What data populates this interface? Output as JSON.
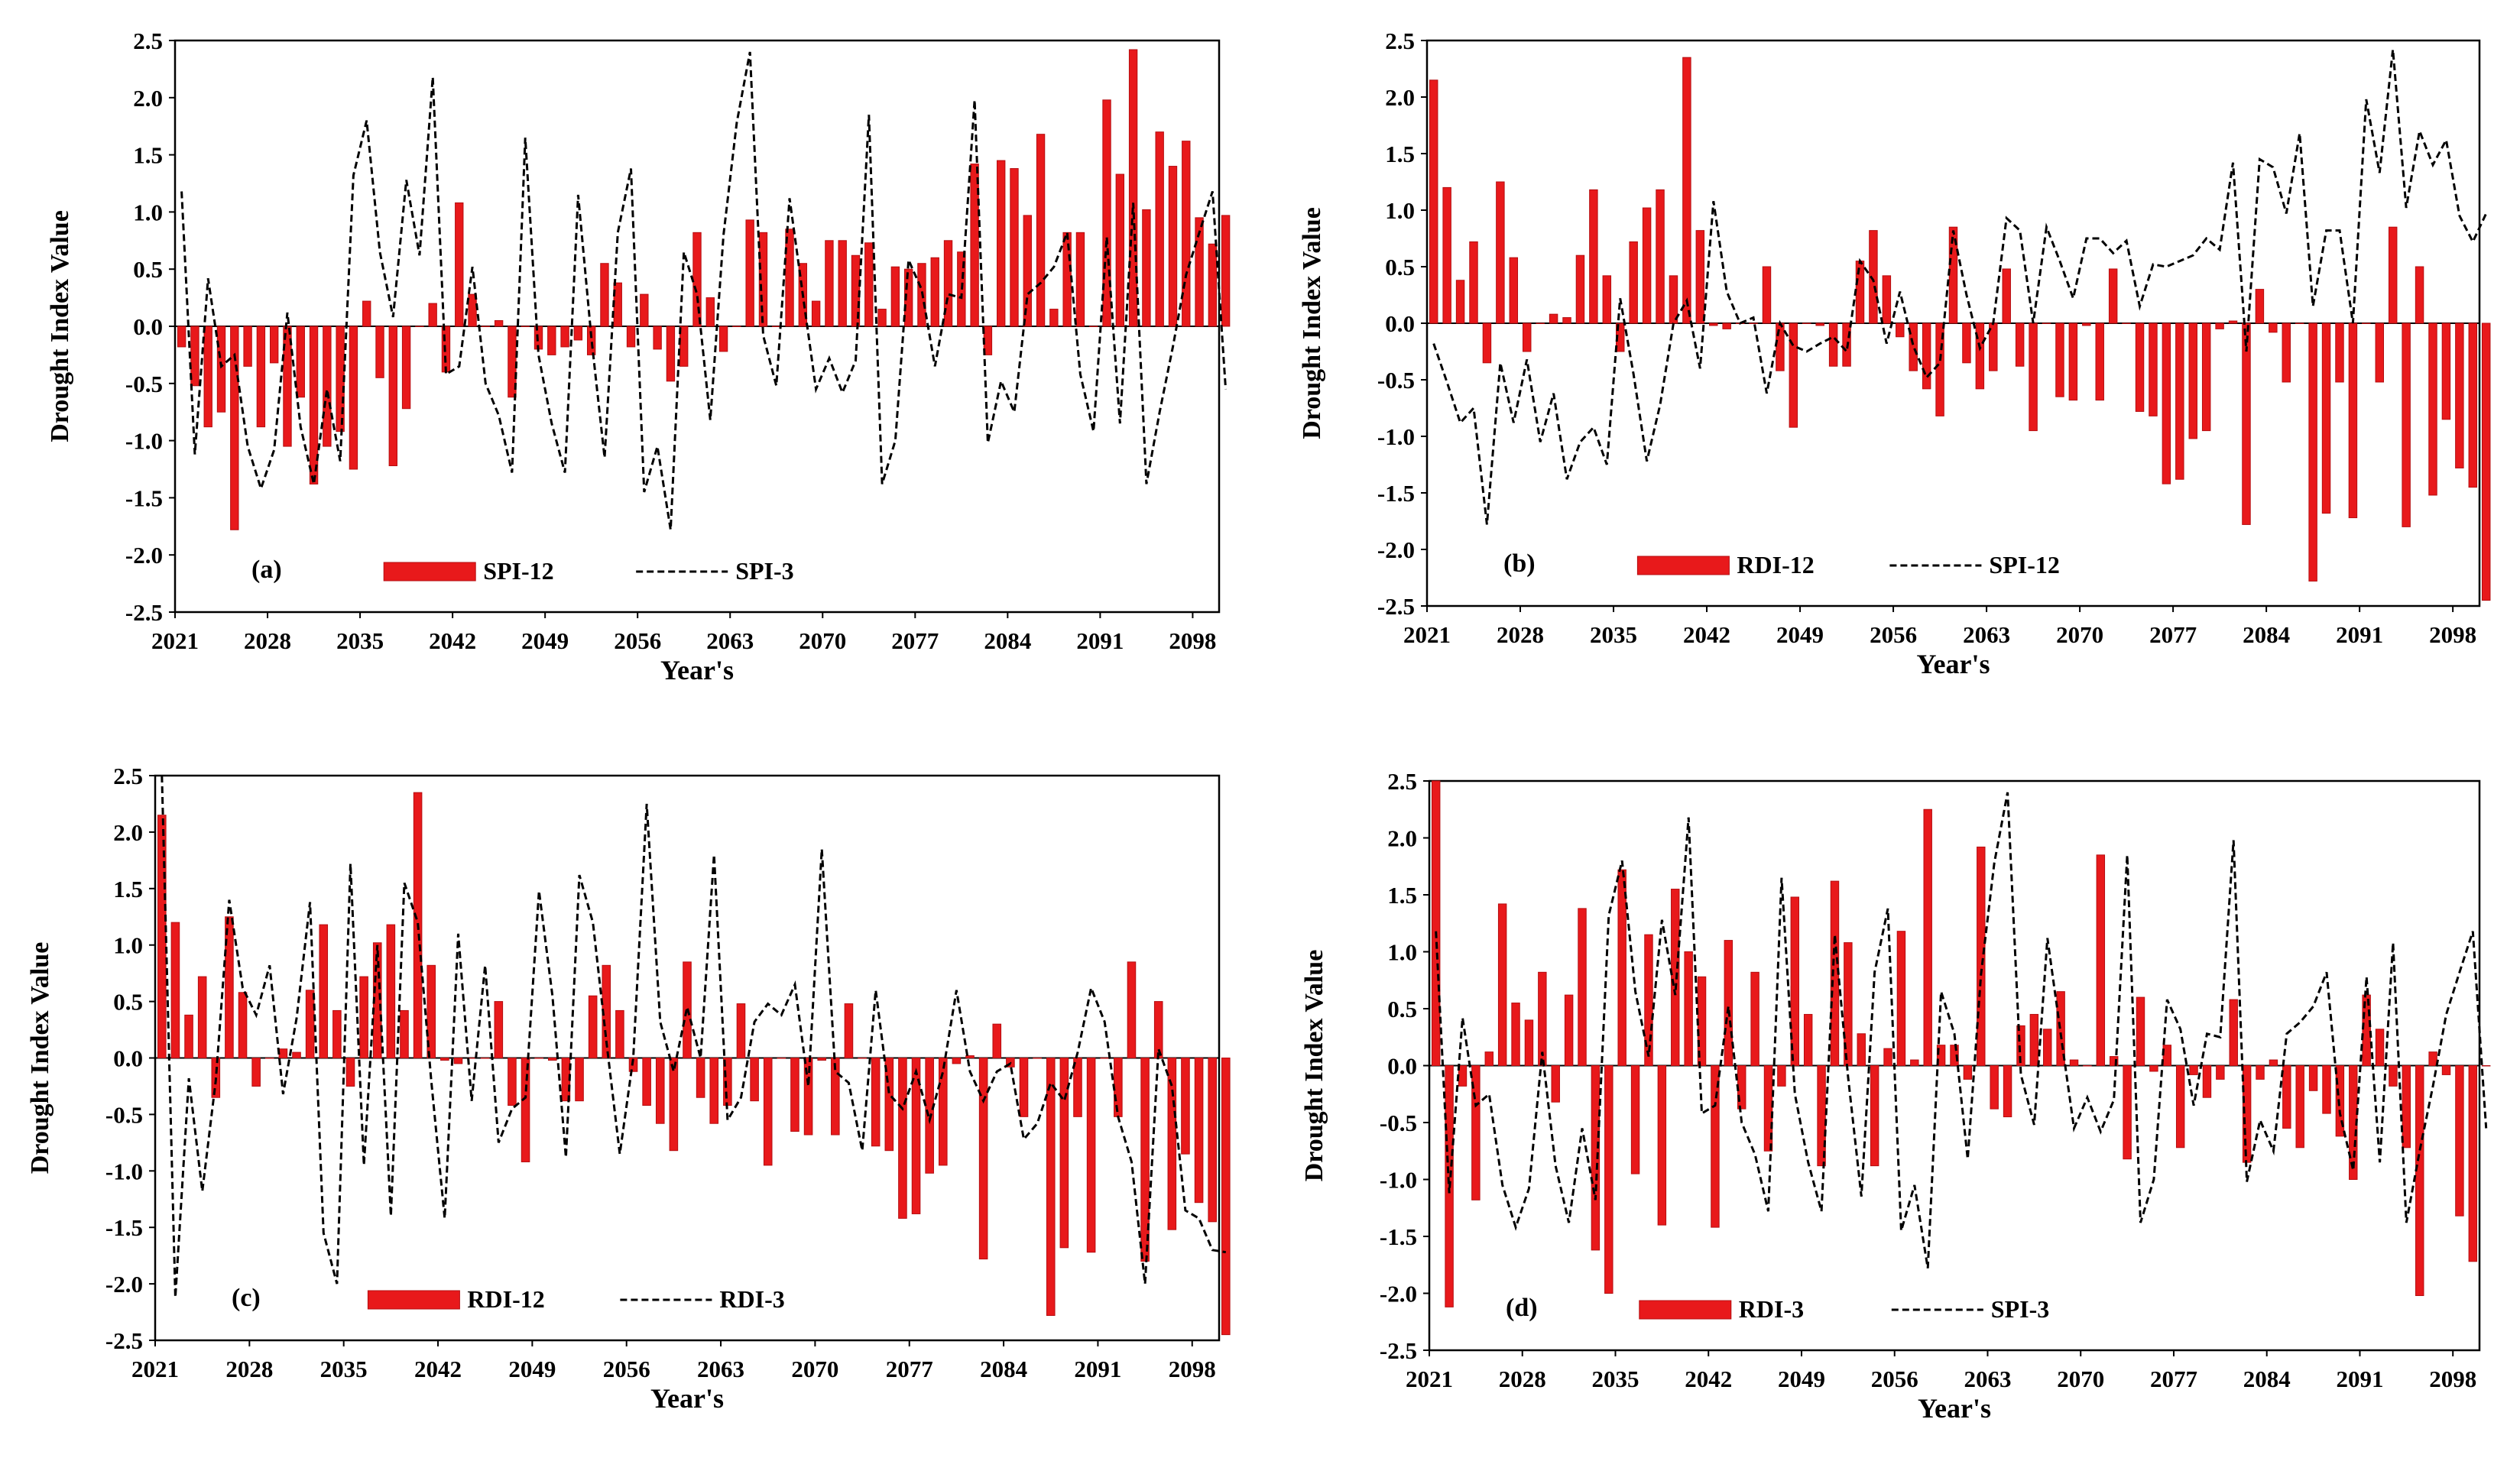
{
  "figure": {
    "colors": {
      "bar": "#e8191b",
      "bar_edge": "#b50d10",
      "line": "#000000",
      "axis": "#000000"
    }
  },
  "chart_data": [
    {
      "type": "bar+line",
      "panel_label": "(a)",
      "ylabel": "Drought Index Value",
      "xlabel": "Year's",
      "ylim": [
        -2.5,
        2.5
      ],
      "yticks": [
        "2.5",
        "2.0",
        "1.5",
        "1.0",
        "0.5",
        "0.0",
        "-0.5",
        "-1.0",
        "-1.5",
        "-2.0",
        "-2.5"
      ],
      "xrange": [
        2021,
        2100
      ],
      "xticks": [
        "2021",
        "2028",
        "2035",
        "2042",
        "2049",
        "2056",
        "2063",
        "2070",
        "2077",
        "2084",
        "2091",
        "2098"
      ],
      "legend": {
        "bar": "SPI-12",
        "line": "SPI-3"
      },
      "bar_series": [
        -0.18,
        -0.52,
        -0.88,
        -0.75,
        -1.78,
        -0.35,
        -0.88,
        -0.32,
        -1.05,
        -0.62,
        -1.38,
        -1.05,
        -0.92,
        -1.25,
        0.22,
        -0.45,
        -1.22,
        -0.72,
        0.0,
        0.2,
        -0.4,
        1.08,
        0.28,
        0.0,
        0.05,
        -0.62,
        0.0,
        -0.2,
        -0.25,
        -0.18,
        -0.12,
        -0.25,
        0.55,
        0.38,
        -0.18,
        0.28,
        -0.2,
        -0.48,
        -0.35,
        0.82,
        0.25,
        -0.22,
        0.0,
        0.93,
        0.82,
        0.0,
        0.85,
        0.55,
        0.22,
        0.75,
        0.75,
        0.62,
        0.73,
        0.15,
        0.52,
        0.5,
        0.55,
        0.6,
        0.75,
        0.65,
        1.42,
        -0.25,
        1.45,
        1.38,
        0.97,
        1.68,
        0.15,
        0.82,
        0.82,
        0.0,
        1.98,
        1.33,
        2.42,
        1.02,
        1.7,
        1.4,
        1.62,
        0.95,
        0.72,
        0.97
      ],
      "line_series": [
        1.18,
        -1.12,
        0.42,
        -0.35,
        -0.25,
        -1.05,
        -1.42,
        -1.08,
        0.12,
        -0.88,
        -1.38,
        -0.55,
        -1.18,
        1.32,
        1.8,
        0.65,
        0.08,
        1.28,
        0.62,
        2.18,
        -0.42,
        -0.35,
        0.52,
        -0.5,
        -0.78,
        -1.28,
        1.65,
        -0.25,
        -0.85,
        -1.28,
        1.15,
        -0.1,
        -1.15,
        0.82,
        1.38,
        -1.45,
        -1.05,
        -1.78,
        0.65,
        0.28,
        -0.82,
        0.8,
        1.78,
        2.4,
        -0.08,
        -0.52,
        1.12,
        0.28,
        -0.55,
        -0.28,
        -0.58,
        -0.3,
        1.85,
        -1.38,
        -1.0,
        0.58,
        0.32,
        -0.35,
        0.28,
        0.25,
        1.98,
        -1.02,
        -0.48,
        -0.75,
        0.28,
        0.38,
        0.52,
        0.82,
        -0.42,
        -0.92,
        0.78,
        -0.85,
        1.08,
        -1.38,
        -0.75,
        -0.18,
        0.45,
        0.82,
        1.18,
        -0.55
      ]
    },
    {
      "type": "bar+line",
      "panel_label": "(b)",
      "ylabel": "Drought Index Value",
      "xlabel": "Year's",
      "ylim": [
        -2.5,
        2.5
      ],
      "yticks": [
        "2.5",
        "2.0",
        "1.5",
        "1.0",
        "0.5",
        "0.0",
        "-0.5",
        "-1.0",
        "-1.5",
        "-2.0",
        "-2.5"
      ],
      "xrange": [
        2021,
        2100
      ],
      "xticks": [
        "2021",
        "2028",
        "2035",
        "2042",
        "2049",
        "2056",
        "2063",
        "2070",
        "2077",
        "2084",
        "2091",
        "2098"
      ],
      "legend": {
        "bar": "RDI-12",
        "line": "SPI-12"
      },
      "bar_series": [
        2.15,
        1.2,
        0.38,
        0.72,
        -0.35,
        1.25,
        0.58,
        -0.25,
        0.0,
        0.08,
        0.05,
        0.6,
        1.18,
        0.42,
        -0.25,
        0.72,
        1.02,
        1.18,
        0.42,
        2.35,
        0.82,
        -0.02,
        -0.05,
        0.0,
        0.0,
        0.5,
        -0.42,
        -0.92,
        0.0,
        -0.02,
        -0.38,
        -0.38,
        0.55,
        0.82,
        0.42,
        -0.12,
        -0.42,
        -0.58,
        -0.82,
        0.85,
        -0.35,
        -0.58,
        -0.42,
        0.48,
        -0.38,
        -0.95,
        0.0,
        -0.65,
        -0.68,
        -0.02,
        -0.68,
        0.48,
        0.0,
        -0.78,
        -0.82,
        -1.42,
        -1.38,
        -1.02,
        -0.95,
        -0.05,
        0.02,
        -1.78,
        0.3,
        -0.08,
        -0.52,
        0.0,
        -2.28,
        -1.68,
        -0.52,
        -1.72,
        0.0,
        -0.52,
        0.85,
        -1.8,
        0.5,
        -1.52,
        -0.85,
        -1.28,
        -1.45,
        -2.45
      ],
      "line_series": [
        -0.18,
        -0.52,
        -0.88,
        -0.75,
        -1.78,
        -0.35,
        -0.88,
        -0.32,
        -1.05,
        -0.62,
        -1.38,
        -1.05,
        -0.92,
        -1.25,
        0.22,
        -0.45,
        -1.22,
        -0.72,
        0.0,
        0.2,
        -0.4,
        1.08,
        0.28,
        0.0,
        0.05,
        -0.62,
        0.0,
        -0.2,
        -0.25,
        -0.18,
        -0.12,
        -0.25,
        0.55,
        0.38,
        -0.18,
        0.28,
        -0.2,
        -0.48,
        -0.35,
        0.82,
        0.25,
        -0.22,
        0.0,
        0.93,
        0.82,
        0.0,
        0.85,
        0.55,
        0.22,
        0.75,
        0.75,
        0.62,
        0.73,
        0.15,
        0.52,
        0.5,
        0.55,
        0.6,
        0.75,
        0.65,
        1.42,
        -0.25,
        1.45,
        1.38,
        0.97,
        1.68,
        0.15,
        0.82,
        0.82,
        0.0,
        1.98,
        1.33,
        2.42,
        1.02,
        1.7,
        1.4,
        1.62,
        0.95,
        0.72,
        0.97
      ]
    },
    {
      "type": "bar+line",
      "panel_label": "(c)",
      "ylabel": "Drought Index Value",
      "xlabel": "Year's",
      "ylim": [
        -2.5,
        2.5
      ],
      "yticks": [
        "2.5",
        "2.0",
        "1.5",
        "1.0",
        "0.5",
        "0.0",
        "-0.5",
        "-1.0",
        "-1.5",
        "-2.0",
        "-2.5"
      ],
      "xrange": [
        2021,
        2100
      ],
      "xticks": [
        "2021",
        "2028",
        "2035",
        "2042",
        "2049",
        "2056",
        "2063",
        "2070",
        "2077",
        "2084",
        "2091",
        "2098"
      ],
      "legend": {
        "bar": "RDI-12",
        "line": "RDI-3"
      },
      "bar_series": [
        2.15,
        1.2,
        0.38,
        0.72,
        -0.35,
        1.25,
        0.58,
        -0.25,
        0.0,
        0.08,
        0.05,
        0.6,
        1.18,
        0.42,
        -0.25,
        0.72,
        1.02,
        1.18,
        0.42,
        2.35,
        0.82,
        -0.02,
        -0.05,
        0.0,
        0.0,
        0.5,
        -0.42,
        -0.92,
        0.0,
        -0.02,
        -0.38,
        -0.38,
        0.55,
        0.82,
        0.42,
        -0.12,
        -0.42,
        -0.58,
        -0.82,
        0.85,
        -0.35,
        -0.58,
        -0.42,
        0.48,
        -0.38,
        -0.95,
        0.0,
        -0.65,
        -0.68,
        -0.02,
        -0.68,
        0.48,
        0.0,
        -0.78,
        -0.82,
        -1.42,
        -1.38,
        -1.02,
        -0.95,
        -0.05,
        0.02,
        -1.78,
        0.3,
        -0.08,
        -0.52,
        0.0,
        -2.28,
        -1.68,
        -0.52,
        -1.72,
        0.0,
        -0.52,
        0.85,
        -1.8,
        0.5,
        -1.52,
        -0.85,
        -1.28,
        -1.45,
        -2.45
      ],
      "line_series": [
        2.5,
        -2.12,
        -0.18,
        -1.18,
        -0.2,
        1.4,
        0.62,
        0.38,
        0.82,
        -0.32,
        0.35,
        1.38,
        -1.55,
        -2.0,
        1.72,
        -0.95,
        1.0,
        -1.4,
        1.55,
        1.2,
        -0.2,
        -1.42,
        1.1,
        -0.38,
        0.82,
        -0.75,
        -0.45,
        -0.35,
        1.48,
        0.55,
        -0.88,
        1.62,
        1.2,
        0.15,
        -0.85,
        0.0,
        2.25,
        0.32,
        -0.12,
        0.45,
        0.0,
        1.8,
        -0.55,
        -0.35,
        0.32,
        0.48,
        0.38,
        0.65,
        -0.25,
        1.85,
        -0.12,
        -0.22,
        -0.82,
        0.6,
        -0.32,
        -0.45,
        -0.12,
        -0.55,
        -0.12,
        0.6,
        -0.12,
        -0.38,
        -0.12,
        -0.05,
        -0.72,
        -0.58,
        -0.22,
        -0.38,
        0.05,
        0.62,
        0.32,
        -0.52,
        -0.92,
        -2.0,
        0.08,
        -0.25,
        -1.35,
        -1.42,
        -1.7,
        -1.72
      ]
    },
    {
      "type": "bar+line",
      "panel_label": "(d)",
      "ylabel": "Drought Index Value",
      "xlabel": "Year's",
      "ylim": [
        -2.5,
        2.5
      ],
      "yticks": [
        "2.5",
        "2.0",
        "1.5",
        "1.0",
        "0.5",
        "0.0",
        "-0.5",
        "-1.0",
        "-1.5",
        "-2.0",
        "-2.5"
      ],
      "xrange": [
        2021,
        2100
      ],
      "xticks": [
        "2021",
        "2028",
        "2035",
        "2042",
        "2049",
        "2056",
        "2063",
        "2070",
        "2077",
        "2084",
        "2091",
        "2098"
      ],
      "legend": {
        "bar": "RDI-3",
        "line": "SPI-3"
      },
      "bar_series": [
        2.5,
        -2.12,
        -0.18,
        -1.18,
        0.12,
        1.42,
        0.55,
        0.4,
        0.82,
        -0.32,
        0.62,
        1.38,
        -1.62,
        -2.0,
        1.72,
        -0.95,
        1.15,
        -1.4,
        1.55,
        1.0,
        0.78,
        -1.42,
        1.1,
        -0.38,
        0.82,
        -0.75,
        -0.18,
        1.48,
        0.45,
        -0.88,
        1.62,
        1.08,
        0.28,
        -0.88,
        0.15,
        1.18,
        0.05,
        2.25,
        0.18,
        0.18,
        -0.12,
        1.92,
        -0.38,
        -0.45,
        0.35,
        0.45,
        0.32,
        0.65,
        0.05,
        0.0,
        1.85,
        0.08,
        -0.82,
        0.6,
        -0.05,
        0.18,
        -0.72,
        -0.08,
        -0.28,
        -0.12,
        0.58,
        -0.85,
        -0.12,
        0.05,
        -0.55,
        -0.72,
        -0.22,
        -0.42,
        -0.62,
        -1.0,
        0.62,
        0.32,
        -0.18,
        -0.72,
        -2.02,
        0.12,
        -0.08,
        -1.32,
        -1.72,
        0.0
      ],
      "line_series": [
        1.18,
        -1.12,
        0.42,
        -0.35,
        -0.25,
        -1.05,
        -1.42,
        -1.08,
        0.12,
        -0.88,
        -1.38,
        -0.55,
        -1.18,
        1.32,
        1.8,
        0.65,
        0.08,
        1.28,
        0.62,
        2.18,
        -0.42,
        -0.35,
        0.52,
        -0.5,
        -0.78,
        -1.28,
        1.65,
        -0.25,
        -0.85,
        -1.28,
        1.15,
        -0.1,
        -1.15,
        0.82,
        1.38,
        -1.45,
        -1.05,
        -1.78,
        0.65,
        0.28,
        -0.82,
        0.8,
        1.78,
        2.4,
        -0.08,
        -0.52,
        1.12,
        0.28,
        -0.55,
        -0.28,
        -0.58,
        -0.3,
        1.85,
        -1.38,
        -1.0,
        0.58,
        0.32,
        -0.35,
        0.28,
        0.25,
        1.98,
        -1.02,
        -0.48,
        -0.75,
        0.28,
        0.38,
        0.52,
        0.82,
        -0.42,
        -0.92,
        0.78,
        -0.85,
        1.08,
        -1.38,
        -0.75,
        -0.18,
        0.45,
        0.82,
        1.18,
        -0.55
      ]
    }
  ]
}
